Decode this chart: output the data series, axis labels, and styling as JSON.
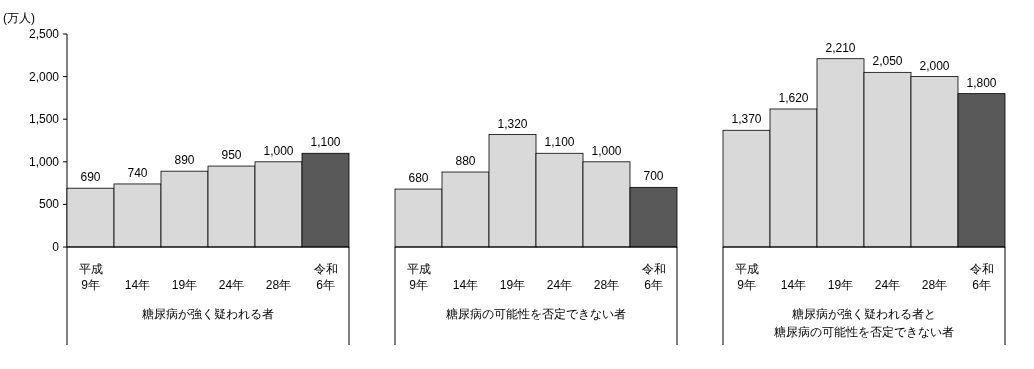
{
  "chart_data": [
    {
      "type": "bar",
      "ylabel": "(万人)",
      "xlabel": "糖尿病が強く疑われる者",
      "categories": [
        "平成\n9年",
        "14年",
        "19年",
        "24年",
        "28年",
        "令和\n6年"
      ],
      "values": [
        690,
        740,
        890,
        950,
        1000,
        1100
      ],
      "value_labels": [
        "690",
        "740",
        "890",
        "950",
        "1,000",
        "1,100"
      ],
      "colors": [
        "#d9d9d9",
        "#d9d9d9",
        "#d9d9d9",
        "#d9d9d9",
        "#d9d9d9",
        "#595959"
      ],
      "ylim": [
        0,
        2500
      ],
      "yticks": [
        0,
        {
          "value": 500,
          "label": "500"
        },
        {
          "value": 1000,
          "label": "1,000"
        },
        {
          "value": 1500,
          "label": "1,500"
        },
        {
          "value": 2000,
          "label": "2,000"
        },
        {
          "value": 2500,
          "label": "2,500"
        }
      ]
    },
    {
      "type": "bar",
      "xlabel": "糖尿病の可能性を否定できない者",
      "categories": [
        "平成\n9年",
        "14年",
        "19年",
        "24年",
        "28年",
        "令和\n6年"
      ],
      "values": [
        680,
        880,
        1320,
        1100,
        1000,
        700
      ],
      "value_labels": [
        "680",
        "880",
        "1,320",
        "1,100",
        "1,000",
        "700"
      ],
      "colors": [
        "#d9d9d9",
        "#d9d9d9",
        "#d9d9d9",
        "#d9d9d9",
        "#d9d9d9",
        "#595959"
      ],
      "ylim": [
        0,
        2500
      ],
      "tick_labels": "x"
    },
    {
      "type": "bar",
      "xlabel": [
        "糖尿病が強く疑われる者と",
        "糖尿病の可能性を否定できない者"
      ],
      "categories": [
        "平成\n9年",
        "14年",
        "19年",
        "24年",
        "28年",
        "令和\n6年"
      ],
      "values": [
        1370,
        1620,
        2210,
        2050,
        2000,
        1800
      ],
      "value_labels": [
        "1,370",
        "1,620",
        "2,210",
        "2,050",
        "2,000",
        "1,800"
      ],
      "colors": [
        "#d9d9d9",
        "#d9d9d9",
        "#d9d9d9",
        "#d9d9d9",
        "#d9d9d9",
        "#595959"
      ],
      "ylim": [
        0,
        2500
      ],
      "tick_labels": "x"
    }
  ]
}
